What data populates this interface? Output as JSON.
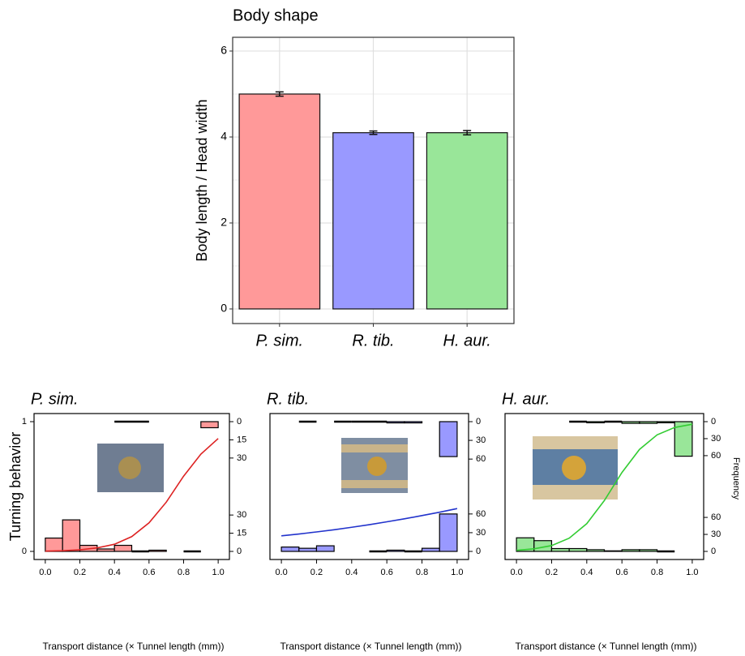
{
  "chart_data": [
    {
      "type": "bar",
      "title": "Body shape",
      "ylabel": "Body length / Head width",
      "categories": [
        "P. sim.",
        "R. tib.",
        "H. aur."
      ],
      "values": [
        5.0,
        4.1,
        4.1
      ],
      "errors": [
        0.05,
        0.04,
        0.05
      ],
      "colors": [
        "#ff9999",
        "#9999ff",
        "#99e699"
      ],
      "ylim": [
        -0.34,
        6.32
      ],
      "yticks": [
        0,
        2,
        4,
        6
      ],
      "yminor": [
        1,
        3,
        5
      ],
      "grid": true
    },
    {
      "type": "logistic",
      "title": "P. sim.",
      "ylabel": "Turning behavior",
      "xlabel": "Transport distance (× Tunnel length (mm))",
      "fill": "#ff9999",
      "color": "#dd2222",
      "xlim": [
        -0.065,
        1.065
      ],
      "xticks": [
        {
          "value": 0,
          "label": "0.0"
        },
        0.2,
        0.4,
        0.6,
        0.8,
        {
          "value": 1,
          "label": "1.0"
        }
      ],
      "ylim": [
        -0.0625,
        1.0625
      ],
      "yticks": [
        0,
        1
      ],
      "y2lim": [
        0,
        107
      ],
      "y2ticks_top": [
        0,
        15,
        30
      ],
      "y2ticks_bottom": [
        0,
        15,
        30
      ],
      "bins": [
        0,
        0.1,
        0.2,
        0.3,
        0.4,
        0.5,
        0.6,
        0.7,
        0.8,
        0.9,
        1.0
      ],
      "top_counts": [
        null,
        null,
        null,
        null,
        0,
        0,
        null,
        null,
        null,
        5
      ],
      "bottom_counts": [
        11,
        26,
        5,
        2,
        5,
        0,
        1,
        null,
        0,
        null
      ],
      "x": [
        0,
        0.1,
        0.2,
        0.3,
        0.4,
        0.5,
        0.6,
        0.7,
        0.8,
        0.9,
        1.0
      ],
      "y": [
        0.002,
        0.005,
        0.012,
        0.027,
        0.055,
        0.114,
        0.22,
        0.38,
        0.58,
        0.75,
        0.87
      ]
    },
    {
      "type": "logistic",
      "title": "R. tib.",
      "xlabel": "Transport distance (× Tunnel length (mm))",
      "fill": "#9999ff",
      "color": "#2233cc",
      "xlim": [
        -0.065,
        1.065
      ],
      "xticks": [
        {
          "value": 0,
          "label": "0.0"
        },
        0.2,
        0.4,
        0.6,
        0.8,
        {
          "value": 1,
          "label": "1.0"
        }
      ],
      "ylim": [
        -0.0625,
        1.0625
      ],
      "y2lim": [
        0,
        208
      ],
      "y2ticks_top": [
        0,
        30,
        60
      ],
      "y2ticks_bottom": [
        0,
        30,
        60
      ],
      "bins": [
        0,
        0.1,
        0.2,
        0.3,
        0.4,
        0.5,
        0.6,
        0.7,
        0.8,
        0.9,
        1.0
      ],
      "top_counts": [
        null,
        0,
        null,
        0,
        0,
        0,
        2,
        2,
        null,
        56
      ],
      "bottom_counts": [
        7,
        5,
        9,
        null,
        null,
        0,
        2,
        0,
        5,
        60
      ],
      "x": [
        0,
        0.1,
        0.2,
        0.3,
        0.4,
        0.5,
        0.6,
        0.7,
        0.8,
        0.9,
        1.0
      ],
      "y": [
        0.12,
        0.134,
        0.15,
        0.167,
        0.186,
        0.206,
        0.228,
        0.251,
        0.276,
        0.302,
        0.33
      ]
    },
    {
      "type": "logistic",
      "title": "H. aur.",
      "xlabel": "Transport distance (× Tunnel length (mm))",
      "y2label": "Frequency",
      "fill": "#99e699",
      "color": "#33cc33",
      "xlim": [
        -0.065,
        1.065
      ],
      "xticks": [
        {
          "value": 0,
          "label": "0.0"
        },
        0.2,
        0.4,
        0.6,
        0.8,
        {
          "value": 1,
          "label": "1.0"
        }
      ],
      "ylim": [
        -0.0625,
        1.0625
      ],
      "y2lim": [
        0,
        229
      ],
      "y2ticks_top": [
        0,
        30,
        60
      ],
      "y2ticks_bottom": [
        0,
        30,
        60
      ],
      "bins": [
        0,
        0.1,
        0.2,
        0.3,
        0.4,
        0.5,
        0.6,
        0.7,
        0.8,
        0.9,
        1.0
      ],
      "top_counts": [
        null,
        null,
        null,
        0,
        2,
        0,
        3,
        3,
        2,
        61
      ],
      "bottom_counts": [
        24,
        19,
        5,
        5,
        3,
        1,
        3,
        3,
        0,
        null
      ],
      "x": [
        0,
        0.1,
        0.2,
        0.3,
        0.4,
        0.5,
        0.6,
        0.7,
        0.8,
        0.9,
        1.0
      ],
      "y": [
        0.008,
        0.02,
        0.045,
        0.102,
        0.214,
        0.392,
        0.608,
        0.786,
        0.898,
        0.955,
        0.98
      ]
    }
  ]
}
